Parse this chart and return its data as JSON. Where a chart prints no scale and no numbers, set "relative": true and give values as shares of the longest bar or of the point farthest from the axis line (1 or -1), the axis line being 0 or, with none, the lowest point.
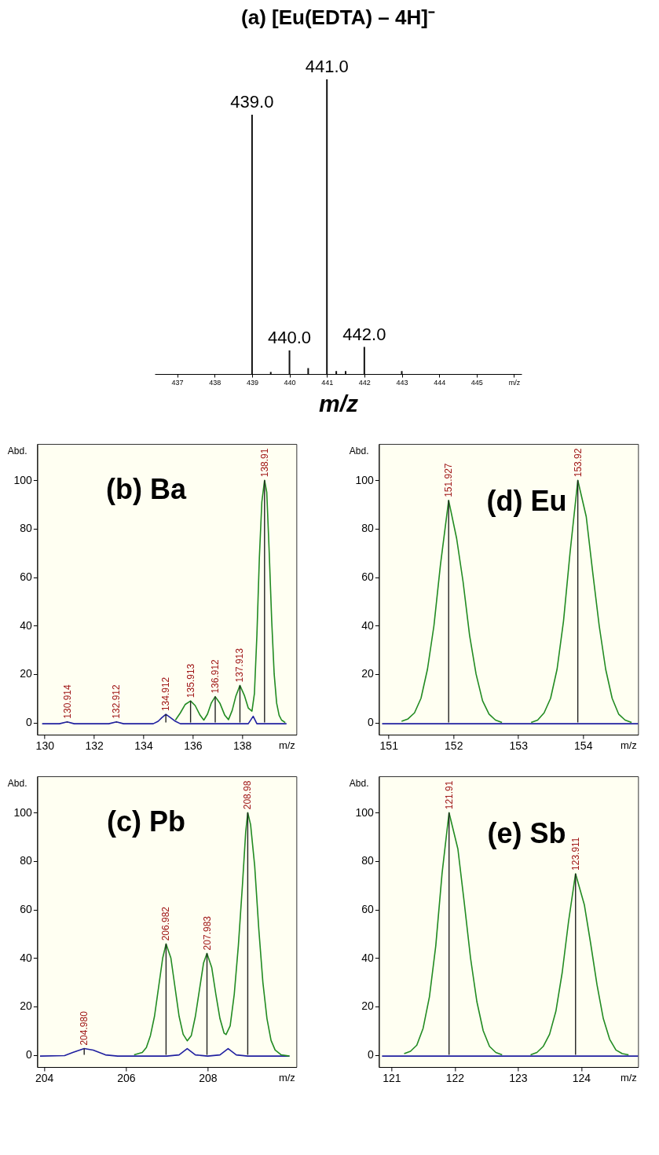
{
  "chart_data": [
    {
      "type": "bar",
      "title": "(a) [Eu(EDTA) – 4H]⁻",
      "xlabel": "m/z",
      "relative": true,
      "color": "#111111",
      "x": [
        439.0,
        439.5,
        440.0,
        440.5,
        441.0,
        441.25,
        441.5,
        442.0,
        443.0
      ],
      "values": [
        0.88,
        0.007,
        0.08,
        0.02,
        1,
        0.01,
        0.01,
        0.092,
        0.01
      ],
      "annotations": [
        {
          "text": "439.0",
          "x": 439.0,
          "y": 0.88
        },
        {
          "text": "440.0",
          "x": 440.0,
          "y": 0.08
        },
        {
          "text": "441.0",
          "x": 441.0,
          "y": 1
        },
        {
          "text": "442.0",
          "x": 442.0,
          "y": 0.092
        }
      ],
      "xlim": [
        436.4,
        446.2
      ],
      "xticks": [
        437,
        438,
        439,
        440,
        441,
        442,
        443,
        444,
        445,
        {
          "value": 446,
          "label": "m/z"
        }
      ]
    },
    {
      "type": "line",
      "title": "(b) Ba",
      "xlabel": "m/z",
      "ylabel": "Abd.",
      "xlim": [
        129.7,
        140.2
      ],
      "xticks": [
        130,
        132,
        134,
        136,
        138
      ],
      "ylim": [
        -5,
        115
      ],
      "yticks": [
        0,
        20,
        40,
        60,
        80,
        100
      ],
      "series": [
        {
          "color": "#2020a0",
          "x": [
            129.9,
            130.6,
            130.914,
            131.2,
            132.6,
            132.912,
            133.2,
            134.4,
            134.6,
            134.75,
            134.912,
            135.1,
            135.3,
            135.5,
            138.25,
            138.45,
            138.6,
            139.8
          ],
          "values": [
            -0.5,
            -0.5,
            0.3,
            -0.5,
            -0.5,
            0.3,
            -0.5,
            -0.5,
            0.5,
            2,
            3.4,
            2,
            0.5,
            -0.5,
            -0.5,
            2.6,
            -0.5,
            -0.5
          ]
        },
        {
          "color": "#228b22",
          "x": [
            135.3,
            135.5,
            135.7,
            135.913,
            136.1,
            136.3,
            136.45,
            136.6,
            136.75,
            136.912,
            137.1,
            137.3,
            137.45,
            137.6,
            137.75,
            137.913,
            138.1,
            138.25,
            138.4,
            138.5,
            138.6,
            138.7,
            138.8,
            138.91,
            139.0,
            139.1,
            139.2,
            139.3,
            139.4,
            139.5,
            139.6,
            139.75
          ],
          "values": [
            1,
            4,
            7.5,
            8.9,
            7,
            3,
            1,
            3.5,
            8,
            10.7,
            8,
            3,
            1.2,
            5,
            11,
            15.3,
            11,
            6,
            4.7,
            12,
            36,
            68,
            91,
            100,
            95,
            70,
            42,
            20,
            8,
            3,
            1,
            0
          ]
        },
        {
          "type": "bar",
          "color": "#222222",
          "x": [
            130.914,
            132.912,
            134.912,
            135.913,
            136.912,
            137.913,
            138.91
          ],
          "values": [
            0.3,
            0.3,
            3.4,
            8.9,
            10.7,
            15.3,
            100
          ]
        }
      ],
      "annotations": [
        {
          "text": "130.914",
          "x": 130.914,
          "y": 0.3
        },
        {
          "text": "132.912",
          "x": 132.912,
          "y": 0.3
        },
        {
          "text": "134.912",
          "x": 134.912,
          "y": 3.4
        },
        {
          "text": "135.913",
          "x": 135.913,
          "y": 8.9
        },
        {
          "text": "136.912",
          "x": 136.912,
          "y": 10.7
        },
        {
          "text": "137.913",
          "x": 137.913,
          "y": 15.3
        },
        {
          "text": "138.91",
          "x": 138.91,
          "y": 100
        }
      ]
    },
    {
      "type": "line",
      "title": "(c) Pb",
      "xlabel": "m/z",
      "ylabel": "Abd.",
      "xlim": [
        203.83,
        210.17
      ],
      "xticks": [
        204,
        206,
        208
      ],
      "ylim": [
        -5,
        115
      ],
      "yticks": [
        0,
        20,
        40,
        60,
        80,
        100
      ],
      "series": [
        {
          "color": "#2020a0",
          "x": [
            203.9,
            204.5,
            204.7,
            204.98,
            205.2,
            205.5,
            205.8,
            207.0,
            207.3,
            207.5,
            207.7,
            208.0,
            208.3,
            208.5,
            208.7,
            208.98,
            210.0
          ],
          "values": [
            -0.5,
            -0.3,
            1,
            2.6,
            2,
            0,
            -0.5,
            -0.5,
            0,
            2.6,
            0,
            -0.5,
            0,
            2.6,
            0,
            -0.5,
            -0.5
          ]
        },
        {
          "color": "#228b22",
          "x": [
            206.2,
            206.4,
            206.5,
            206.6,
            206.7,
            206.8,
            206.9,
            206.982,
            207.1,
            207.2,
            207.3,
            207.4,
            207.5,
            207.6,
            207.7,
            207.8,
            207.9,
            207.983,
            208.1,
            208.2,
            208.3,
            208.4,
            208.45,
            208.55,
            208.65,
            208.75,
            208.85,
            208.93,
            208.98,
            209.05,
            209.15,
            209.25,
            209.35,
            209.45,
            209.55,
            209.65,
            209.8,
            210.0
          ],
          "values": [
            0,
            1,
            3,
            8,
            16,
            28,
            40,
            45.8,
            40,
            28,
            16,
            8.5,
            5.8,
            8,
            16,
            27,
            38,
            41.9,
            36,
            25,
            15,
            9,
            8.4,
            12,
            25,
            45,
            70,
            92,
            100,
            95,
            78,
            52,
            30,
            15,
            6,
            2,
            0,
            -0.5
          ]
        },
        {
          "type": "bar",
          "color": "#222222",
          "x": [
            204.98,
            206.982,
            207.983,
            208.98
          ],
          "values": [
            2.6,
            45.8,
            41.9,
            100
          ]
        }
      ],
      "annotations": [
        {
          "text": "204.980",
          "x": 204.98,
          "y": 2.6
        },
        {
          "text": "206.982",
          "x": 206.982,
          "y": 45.8
        },
        {
          "text": "207.983",
          "x": 207.983,
          "y": 41.9
        },
        {
          "text": "208.98",
          "x": 208.98,
          "y": 100
        }
      ]
    },
    {
      "type": "line",
      "title": "(d) Eu",
      "xlabel": "m/z",
      "ylabel": "Abd.",
      "xlim": [
        150.85,
        154.85
      ],
      "xticks": [
        151,
        152,
        153,
        154
      ],
      "ylim": [
        -5,
        115
      ],
      "yticks": [
        0,
        20,
        40,
        60,
        80,
        100
      ],
      "series": [
        {
          "color": "#2020a0",
          "x": [
            150.9,
            151.3,
            152.7,
            153.3,
            154.7,
            154.85
          ],
          "values": [
            -0.5,
            -0.5,
            -0.5,
            -0.5,
            -0.5,
            -0.5
          ]
        },
        {
          "color": "#228b22",
          "x": [
            151.2,
            151.3,
            151.4,
            151.5,
            151.6,
            151.7,
            151.8,
            151.927,
            152.05,
            152.15,
            152.25,
            152.35,
            152.45,
            152.55,
            152.65,
            152.75,
            153.0,
            153.2,
            153.3,
            153.4,
            153.5,
            153.6,
            153.7,
            153.8,
            153.92,
            154.05,
            154.15,
            154.25,
            154.35,
            154.45,
            154.55,
            154.65,
            154.75
          ],
          "values": [
            0.5,
            1.5,
            4,
            10,
            22,
            40,
            65,
            91.7,
            76,
            58,
            36,
            20,
            9,
            3.5,
            1,
            0,
            null,
            0,
            1,
            4,
            10,
            22,
            42,
            70,
            100,
            85,
            62,
            40,
            22,
            10,
            3.5,
            1,
            0
          ]
        },
        {
          "type": "bar",
          "color": "#222222",
          "x": [
            151.927,
            153.92
          ],
          "values": [
            91.7,
            100
          ]
        }
      ],
      "annotations": [
        {
          "text": "151.927",
          "x": 151.927,
          "y": 91.7
        },
        {
          "text": "153.92",
          "x": 153.92,
          "y": 100
        }
      ]
    },
    {
      "type": "line",
      "title": "(e) Sb",
      "xlabel": "m/z",
      "ylabel": "Abd.",
      "xlim": [
        120.8,
        124.9
      ],
      "xticks": [
        121,
        122,
        123,
        124
      ],
      "ylim": [
        -5,
        115
      ],
      "yticks": [
        0,
        20,
        40,
        60,
        80,
        100
      ],
      "series": [
        {
          "color": "#2020a0",
          "x": [
            120.85,
            121.3,
            122.7,
            123.3,
            124.7,
            124.9
          ],
          "values": [
            -0.5,
            -0.5,
            -0.5,
            -0.5,
            -0.5,
            -0.5
          ]
        },
        {
          "color": "#228b22",
          "x": [
            121.2,
            121.3,
            121.4,
            121.5,
            121.6,
            121.7,
            121.8,
            121.91,
            122.05,
            122.15,
            122.25,
            122.35,
            122.45,
            122.55,
            122.65,
            122.75,
            123.0,
            123.2,
            123.3,
            123.4,
            123.5,
            123.6,
            123.7,
            123.8,
            123.911,
            124.05,
            124.15,
            124.25,
            124.35,
            124.45,
            124.55,
            124.65,
            124.75
          ],
          "values": [
            0.5,
            1.5,
            4,
            11,
            24,
            45,
            75,
            100,
            85,
            63,
            40,
            22,
            10,
            3.5,
            1,
            0,
            null,
            0,
            1,
            3.5,
            8.5,
            18,
            34,
            55,
            74.8,
            62,
            46,
            29,
            15,
            6.5,
            2,
            0.5,
            0
          ]
        },
        {
          "type": "bar",
          "color": "#222222",
          "x": [
            121.91,
            123.911
          ],
          "values": [
            100,
            74.8
          ]
        }
      ],
      "annotations": [
        {
          "text": "121.91",
          "x": 121.91,
          "y": 100
        },
        {
          "text": "123.911",
          "x": 123.911,
          "y": 74.8
        }
      ]
    }
  ]
}
